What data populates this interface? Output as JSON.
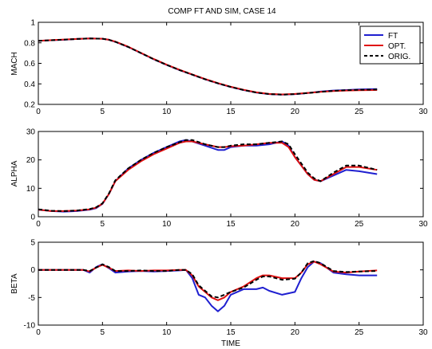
{
  "figure": {
    "title": "COMP FT AND SIM, CASE 14",
    "xlabel": "TIME",
    "colors": {
      "FT": "#1f1fd0",
      "OPT.": "#e01010",
      "ORIG.": "#000000"
    }
  },
  "chart_data": [
    {
      "type": "line",
      "title": "COMP FT AND SIM, CASE 14",
      "xlabel": "",
      "ylabel": "MACH",
      "xlim": [
        0,
        30
      ],
      "ylim": [
        0.2,
        1
      ],
      "xticks": [
        "0",
        "5",
        "10",
        "15",
        "20",
        "25",
        "30"
      ],
      "yticks": [
        "0.2",
        "0.4",
        "0.6",
        "0.8",
        "1"
      ],
      "legend": {
        "placement": "top-right",
        "entries": [
          "FT",
          "OPT.",
          "ORIG."
        ]
      },
      "series": [
        {
          "name": "FT",
          "color": "#1f1fd0",
          "style": "solid",
          "x": [
            0,
            1,
            2,
            3,
            4,
            5,
            5.5,
            6,
            7,
            8,
            9,
            10,
            11,
            12,
            13,
            14,
            15,
            16,
            17,
            18,
            19,
            20,
            21,
            22,
            23,
            24,
            25,
            26.4
          ],
          "y": [
            0.82,
            0.825,
            0.83,
            0.838,
            0.842,
            0.84,
            0.83,
            0.81,
            0.76,
            0.7,
            0.64,
            0.585,
            0.535,
            0.49,
            0.445,
            0.405,
            0.37,
            0.34,
            0.315,
            0.3,
            0.295,
            0.3,
            0.31,
            0.325,
            0.335,
            0.34,
            0.345,
            0.35
          ]
        },
        {
          "name": "OPT.",
          "color": "#e01010",
          "style": "solid",
          "x": [
            0,
            1,
            2,
            3,
            4,
            5,
            5.5,
            6,
            7,
            8,
            9,
            10,
            11,
            12,
            13,
            14,
            15,
            16,
            17,
            18,
            19,
            20,
            21,
            22,
            23,
            24,
            25,
            26.4
          ],
          "y": [
            0.82,
            0.826,
            0.832,
            0.838,
            0.842,
            0.84,
            0.83,
            0.812,
            0.762,
            0.702,
            0.642,
            0.587,
            0.537,
            0.492,
            0.447,
            0.407,
            0.372,
            0.342,
            0.317,
            0.302,
            0.297,
            0.302,
            0.312,
            0.322,
            0.33,
            0.335,
            0.338,
            0.34
          ]
        },
        {
          "name": "ORIG.",
          "color": "#000000",
          "style": "dashed",
          "x": [
            0,
            1,
            2,
            3,
            4,
            5,
            5.5,
            6,
            7,
            8,
            9,
            10,
            11,
            12,
            13,
            14,
            15,
            16,
            17,
            18,
            19,
            20,
            21,
            22,
            23,
            24,
            25,
            26.4
          ],
          "y": [
            0.82,
            0.825,
            0.831,
            0.838,
            0.842,
            0.84,
            0.83,
            0.81,
            0.76,
            0.7,
            0.64,
            0.585,
            0.535,
            0.49,
            0.445,
            0.405,
            0.37,
            0.34,
            0.315,
            0.3,
            0.295,
            0.3,
            0.31,
            0.322,
            0.332,
            0.338,
            0.342,
            0.345
          ]
        }
      ]
    },
    {
      "type": "line",
      "xlabel": "",
      "ylabel": "ALPHA",
      "xlim": [
        0,
        30
      ],
      "ylim": [
        0,
        30
      ],
      "xticks": [
        "0",
        "5",
        "10",
        "15",
        "20",
        "25",
        "30"
      ],
      "yticks": [
        "0",
        "10",
        "20",
        "30"
      ],
      "series": [
        {
          "name": "FT",
          "color": "#1f1fd0",
          "style": "solid",
          "x": [
            0,
            1,
            2,
            3,
            4,
            4.5,
            5,
            5.5,
            6,
            7,
            8,
            9,
            10,
            11,
            11.5,
            12,
            13,
            14,
            14.5,
            15,
            16,
            17,
            18,
            19,
            19.5,
            20,
            21,
            21.5,
            22,
            23,
            24,
            25,
            26.4
          ],
          "y": [
            2.5,
            2.0,
            1.8,
            2.0,
            2.5,
            3.0,
            4.5,
            8.0,
            12.5,
            17.0,
            20.0,
            22.5,
            24.5,
            26.5,
            27.0,
            26.5,
            25.0,
            23.5,
            23.5,
            24.5,
            25.0,
            25.0,
            25.5,
            26.5,
            25.0,
            21.0,
            15.0,
            13.0,
            12.5,
            14.5,
            16.5,
            16.0,
            15.0
          ]
        },
        {
          "name": "OPT.",
          "color": "#e01010",
          "style": "solid",
          "x": [
            0,
            1,
            2,
            3,
            4,
            4.5,
            5,
            5.5,
            6,
            7,
            8,
            9,
            10,
            11,
            11.5,
            12,
            13,
            14,
            14.5,
            15,
            16,
            17,
            18,
            19,
            19.5,
            20,
            21,
            21.5,
            22,
            23,
            24,
            25,
            26.4
          ],
          "y": [
            2.5,
            2.0,
            2.0,
            2.2,
            2.6,
            3.2,
            4.6,
            8.0,
            12.5,
            16.5,
            19.5,
            22.0,
            24.0,
            26.0,
            26.5,
            26.5,
            25.5,
            24.5,
            24.5,
            24.8,
            25.0,
            25.5,
            26.0,
            26.0,
            24.5,
            21.0,
            15.0,
            13.0,
            12.5,
            15.0,
            17.5,
            17.5,
            16.5
          ]
        },
        {
          "name": "ORIG.",
          "color": "#000000",
          "style": "dashed",
          "x": [
            0,
            1,
            2,
            3,
            4,
            4.5,
            5,
            5.5,
            6,
            7,
            8,
            9,
            10,
            11,
            11.5,
            12,
            13,
            14,
            14.5,
            15,
            16,
            17,
            18,
            19,
            19.5,
            20,
            21,
            21.5,
            22,
            23,
            24,
            25,
            26.4
          ],
          "y": [
            2.6,
            2.1,
            2.0,
            2.2,
            2.7,
            3.3,
            4.7,
            8.2,
            12.8,
            17.0,
            20.0,
            22.5,
            24.5,
            26.2,
            27.0,
            27.0,
            25.5,
            24.5,
            24.5,
            25.0,
            25.5,
            25.5,
            26.0,
            26.5,
            25.5,
            22.0,
            15.5,
            13.5,
            12.5,
            15.5,
            18.0,
            18.0,
            16.5
          ]
        }
      ]
    },
    {
      "type": "line",
      "xlabel": "TIME",
      "ylabel": "BETA",
      "xlim": [
        0,
        30
      ],
      "ylim": [
        -10,
        5
      ],
      "xticks": [
        "0",
        "5",
        "10",
        "15",
        "20",
        "25",
        "30"
      ],
      "yticks": [
        "-10",
        "-5",
        "0",
        "5"
      ],
      "series": [
        {
          "name": "FT",
          "color": "#1f1fd0",
          "style": "solid",
          "x": [
            0,
            2,
            3.5,
            4,
            4.5,
            5,
            5.5,
            6,
            7,
            8,
            9,
            10,
            11,
            11.5,
            12,
            12.5,
            13,
            13.5,
            14,
            14.5,
            15,
            16,
            17,
            17.5,
            18,
            19,
            20,
            20.5,
            21,
            21.5,
            22,
            23,
            24,
            25,
            26.4
          ],
          "y": [
            0,
            0,
            0,
            -0.5,
            0.5,
            1.0,
            0.3,
            -0.5,
            -0.3,
            -0.2,
            -0.3,
            -0.2,
            -0.1,
            0,
            -1.5,
            -4.5,
            -5.0,
            -6.5,
            -7.5,
            -6.5,
            -4.5,
            -3.5,
            -3.5,
            -3.2,
            -3.8,
            -4.5,
            -4.0,
            -1.5,
            0.5,
            1.5,
            1.2,
            -0.5,
            -0.8,
            -1.0,
            -1.0
          ]
        },
        {
          "name": "OPT.",
          "color": "#e01010",
          "style": "solid",
          "x": [
            0,
            2,
            3.5,
            4,
            4.5,
            5,
            5.5,
            6,
            7,
            8,
            9,
            10,
            11,
            11.5,
            12,
            12.5,
            13,
            13.5,
            14,
            14.5,
            15,
            16,
            17,
            17.5,
            18,
            19,
            20,
            20.5,
            21,
            21.5,
            22,
            23,
            24,
            25,
            26.4
          ],
          "y": [
            0,
            0,
            0,
            -0.3,
            0.4,
            0.9,
            0.4,
            -0.2,
            -0.1,
            -0.2,
            -0.1,
            -0.1,
            0,
            0,
            -1.0,
            -3.0,
            -4.0,
            -5.0,
            -5.5,
            -5.0,
            -4.0,
            -3.0,
            -1.5,
            -1.0,
            -1.0,
            -1.5,
            -1.5,
            -0.5,
            1.0,
            1.5,
            1.0,
            -0.3,
            -0.5,
            -0.3,
            -0.1
          ]
        },
        {
          "name": "ORIG.",
          "color": "#000000",
          "style": "dashed",
          "x": [
            0,
            2,
            3.5,
            4,
            4.5,
            5,
            5.5,
            6,
            7,
            8,
            9,
            10,
            11,
            11.5,
            12,
            12.5,
            13,
            13.5,
            14,
            14.5,
            15,
            16,
            17,
            17.5,
            18,
            19,
            20,
            20.5,
            21,
            21.5,
            22,
            23,
            24,
            25,
            26.4
          ],
          "y": [
            0,
            0,
            0,
            -0.2,
            0.4,
            1.0,
            0.5,
            -0.2,
            -0.2,
            -0.1,
            -0.2,
            -0.2,
            0,
            0,
            -0.8,
            -2.8,
            -3.8,
            -4.8,
            -5.0,
            -4.5,
            -4.0,
            -3.2,
            -1.8,
            -1.2,
            -1.2,
            -1.8,
            -1.6,
            -0.5,
            1.2,
            1.6,
            1.2,
            -0.2,
            -0.4,
            -0.3,
            -0.2
          ]
        }
      ]
    }
  ]
}
